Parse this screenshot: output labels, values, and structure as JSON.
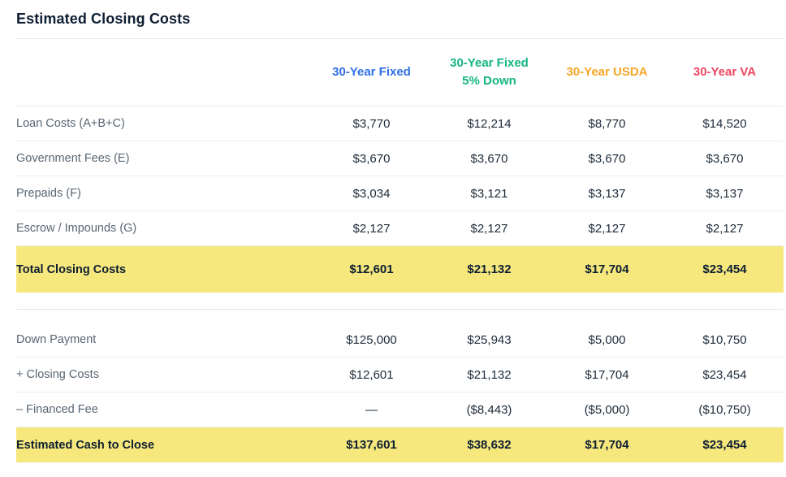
{
  "page": {
    "title": "Estimated Closing Costs"
  },
  "colors": {
    "highlight_bg": "#f6e87d",
    "column_fixed": "#2f6fe4",
    "column_fixed_5_down": "#13b584",
    "column_usda": "#f7a528",
    "column_va": "#ef4662"
  },
  "table": {
    "columns": [
      {
        "line1": "30-Year Fixed",
        "line2": "",
        "color": "#2f6fe4"
      },
      {
        "line1": "30-Year Fixed",
        "line2": "5% Down",
        "color": "#13b584"
      },
      {
        "line1": "30-Year USDA",
        "line2": "",
        "color": "#f7a528"
      },
      {
        "line1": "30-Year VA",
        "line2": "",
        "color": "#ef4662"
      }
    ],
    "sections": [
      {
        "name": "closing-costs",
        "rows": [
          {
            "label": "Loan Costs (A+B+C)",
            "values": [
              "$3,770",
              "$12,214",
              "$8,770",
              "$14,520"
            ],
            "highlight": false
          },
          {
            "label": "Government Fees (E)",
            "values": [
              "$3,670",
              "$3,670",
              "$3,670",
              "$3,670"
            ],
            "highlight": false
          },
          {
            "label": "Prepaids (F)",
            "values": [
              "$3,034",
              "$3,121",
              "$3,137",
              "$3,137"
            ],
            "highlight": false
          },
          {
            "label": "Escrow / Impounds (G)",
            "values": [
              "$2,127",
              "$2,127",
              "$2,127",
              "$2,127"
            ],
            "highlight": false
          },
          {
            "label": "Total Closing Costs",
            "values": [
              "$12,601",
              "$21,132",
              "$17,704",
              "$23,454"
            ],
            "highlight": true
          }
        ]
      },
      {
        "name": "cash-to-close",
        "rows": [
          {
            "label": "Down Payment",
            "values": [
              "$125,000",
              "$25,943",
              "$5,000",
              "$10,750"
            ],
            "highlight": false
          },
          {
            "label": "+ Closing Costs",
            "values": [
              "$12,601",
              "$21,132",
              "$17,704",
              "$23,454"
            ],
            "highlight": false
          },
          {
            "label": "– Financed Fee",
            "values": [
              "—",
              "($8,443)",
              "($5,000)",
              "($10,750)"
            ],
            "highlight": false
          },
          {
            "label": "Estimated Cash to Close",
            "values": [
              "$137,601",
              "$38,632",
              "$17,704",
              "$23,454"
            ],
            "highlight": true
          }
        ]
      }
    ]
  }
}
